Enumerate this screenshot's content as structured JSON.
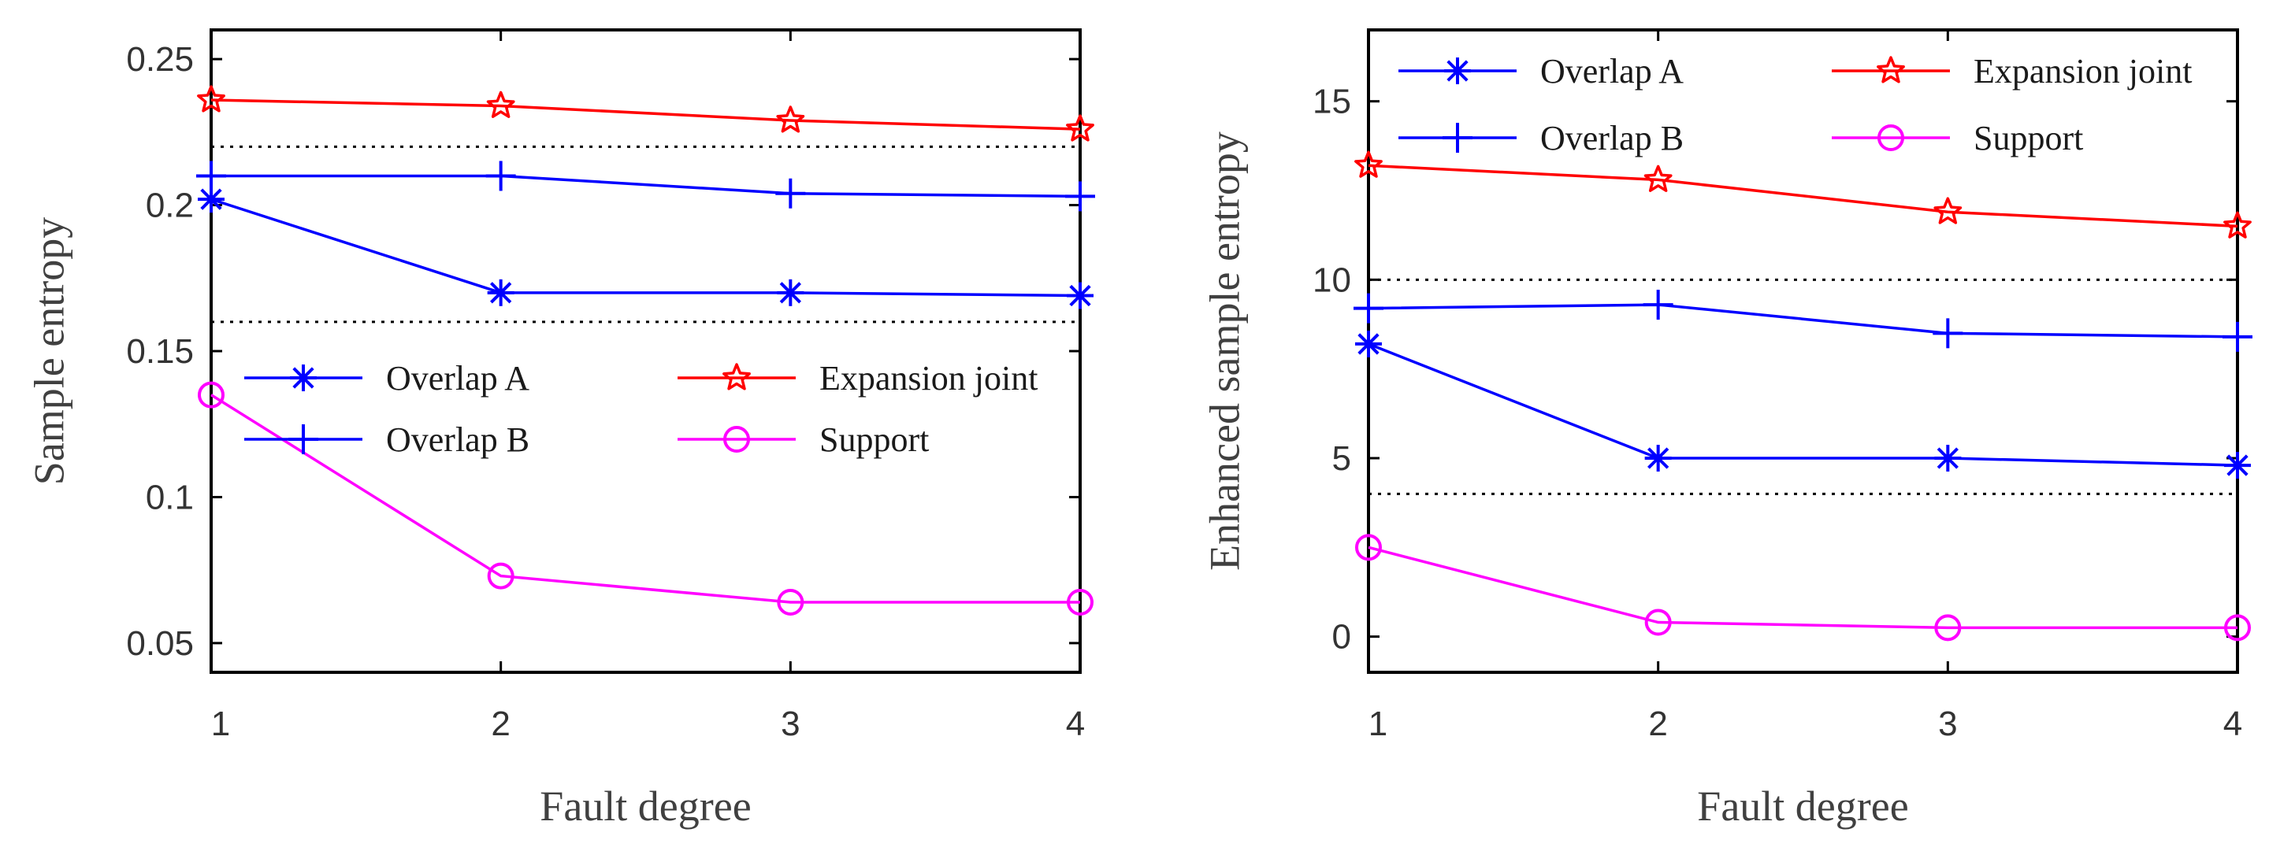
{
  "chart_data": [
    {
      "type": "line",
      "xlabel": "Fault degree",
      "ylabel": "Sample entropy",
      "x": [
        1,
        2,
        3,
        4
      ],
      "xlim": [
        1,
        4
      ],
      "ylim": [
        0.04,
        0.26
      ],
      "xticks": [
        "1",
        "2",
        "3",
        "4"
      ],
      "yticks": [
        {
          "value": 0.05,
          "label": "0.05"
        },
        {
          "value": 0.1,
          "label": "0.1"
        },
        {
          "value": 0.15,
          "label": "0.15"
        },
        {
          "value": 0.2,
          "label": "0.2"
        },
        {
          "value": 0.25,
          "label": "0.25"
        }
      ],
      "thresholds": [
        0.16,
        0.22
      ],
      "legend_position": "center",
      "series": [
        {
          "name": "Overlap A",
          "color": "#0000ff",
          "marker": "asterisk",
          "values": [
            0.202,
            0.17,
            0.17,
            0.169
          ]
        },
        {
          "name": "Overlap B",
          "color": "#0000ff",
          "marker": "plus",
          "values": [
            0.21,
            0.21,
            0.204,
            0.203
          ]
        },
        {
          "name": "Expansion joint",
          "color": "#ff0000",
          "marker": "star",
          "values": [
            0.236,
            0.234,
            0.229,
            0.226
          ]
        },
        {
          "name": "Support",
          "color": "#ff00ff",
          "marker": "circle",
          "values": [
            0.135,
            0.073,
            0.064,
            0.064
          ]
        }
      ]
    },
    {
      "type": "line",
      "xlabel": "Fault degree",
      "ylabel": "Enhanced sample entropy",
      "x": [
        1,
        2,
        3,
        4
      ],
      "xlim": [
        1,
        4
      ],
      "ylim": [
        -1,
        17
      ],
      "xticks": [
        "1",
        "2",
        "3",
        "4"
      ],
      "yticks": [
        {
          "value": 0,
          "label": "0"
        },
        {
          "value": 5,
          "label": "5"
        },
        {
          "value": 10,
          "label": "10"
        },
        {
          "value": 15,
          "label": "15"
        }
      ],
      "thresholds": [
        4,
        10
      ],
      "legend_position": "top",
      "series": [
        {
          "name": "Overlap A",
          "color": "#0000ff",
          "marker": "asterisk",
          "values": [
            8.2,
            5.0,
            5.0,
            4.8
          ]
        },
        {
          "name": "Overlap B",
          "color": "#0000ff",
          "marker": "plus",
          "values": [
            9.2,
            9.3,
            8.5,
            8.4
          ]
        },
        {
          "name": "Expansion joint",
          "color": "#ff0000",
          "marker": "star",
          "values": [
            13.2,
            12.8,
            11.9,
            11.5
          ]
        },
        {
          "name": "Support",
          "color": "#ff00ff",
          "marker": "circle",
          "values": [
            2.5,
            0.4,
            0.25,
            0.25
          ]
        }
      ]
    }
  ]
}
